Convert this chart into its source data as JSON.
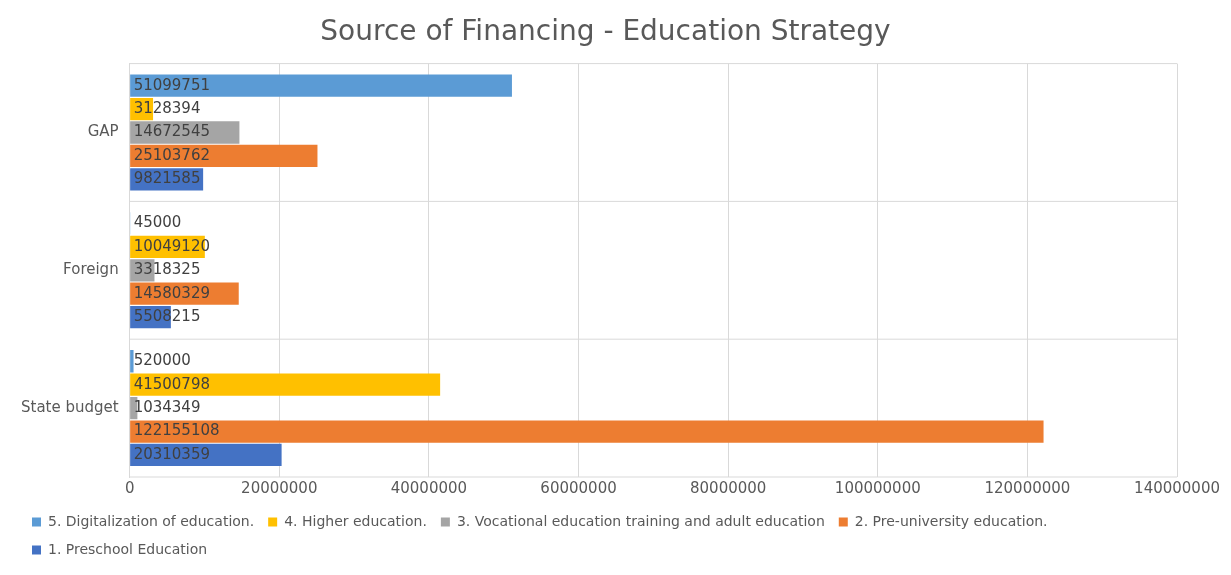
{
  "chart_data": {
    "type": "bar",
    "orientation": "horizontal",
    "title": "Source of Financing - Education Strategy",
    "categories": [
      "GAP",
      "Foreign",
      "State budget"
    ],
    "series": [
      {
        "name": "5. Digitalization of education.",
        "color": "#5b9bd5",
        "values": [
          51099751,
          45000,
          520000
        ]
      },
      {
        "name": "4. Higher education.",
        "color": "#ffc000",
        "values": [
          3128394,
          10049120,
          41500798
        ]
      },
      {
        "name": "3. Vocational education training and adult education",
        "color": "#a5a5a5",
        "values": [
          14672545,
          3318325,
          1034349
        ]
      },
      {
        "name": "2. Pre-university education.",
        "color": "#ed7d31",
        "values": [
          25103762,
          14580329,
          122155108
        ]
      },
      {
        "name": "1. Preschool Education",
        "color": "#4472c4",
        "values": [
          9821585,
          5508215,
          20310359
        ]
      }
    ],
    "xlim": [
      0,
      140000000
    ],
    "xticks": [
      0,
      20000000,
      40000000,
      60000000,
      80000000,
      100000000,
      120000000,
      140000000
    ],
    "grid": true,
    "legend": "bottom",
    "data_labels": true
  }
}
